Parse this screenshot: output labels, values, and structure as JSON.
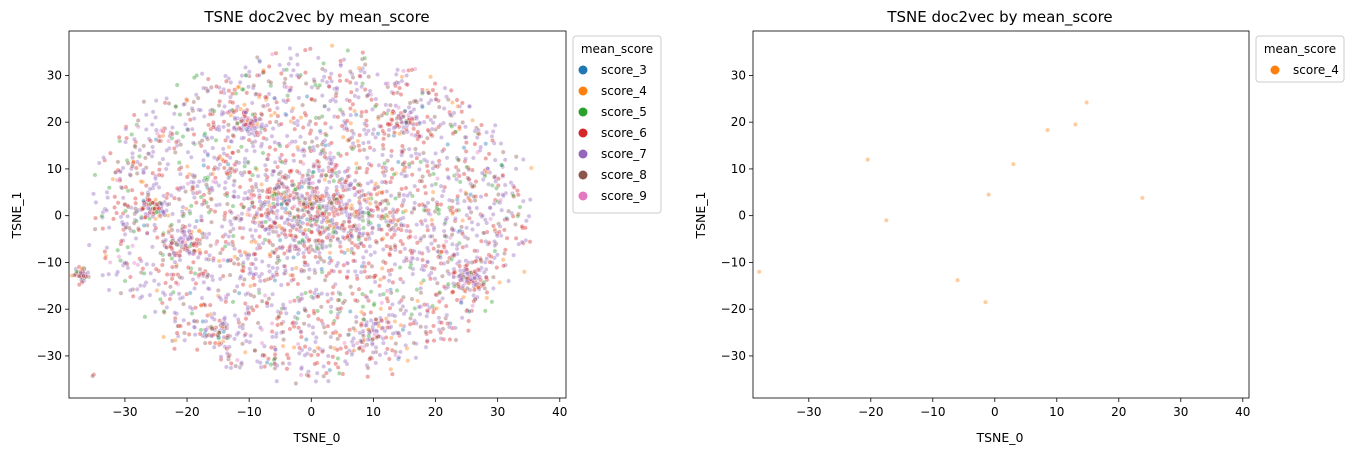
{
  "chart_data": [
    {
      "type": "scatter",
      "title": "TSNE doc2vec by mean_score",
      "xlabel": "TSNE_0",
      "ylabel": "TSNE_1",
      "xlim": [
        -39,
        41
      ],
      "ylim": [
        -39,
        39.5
      ],
      "xticks": [
        -30,
        -20,
        -10,
        0,
        10,
        20,
        30,
        40
      ],
      "yticks": [
        -30,
        -20,
        -10,
        0,
        10,
        20,
        30
      ],
      "legend": {
        "title": "mean_score",
        "placement": "outside upper right",
        "entries": [
          {
            "name": "score_3",
            "color": "#1f77b4"
          },
          {
            "name": "score_4",
            "color": "#ff7f0e"
          },
          {
            "name": "score_5",
            "color": "#2ca02c"
          },
          {
            "name": "score_6",
            "color": "#d62728"
          },
          {
            "name": "score_7",
            "color": "#9467bd"
          },
          {
            "name": "score_8",
            "color": "#8c564b"
          },
          {
            "name": "score_9",
            "color": "#e377c2"
          }
        ]
      },
      "clusters": [
        {
          "x": 0,
          "y": 0,
          "rx": 37,
          "ry": 37,
          "n": 2600
        },
        {
          "x": 1,
          "y": 1,
          "rx": 12,
          "ry": 10,
          "n": 500
        },
        {
          "x": -37,
          "y": -12.8,
          "rx": 1.3,
          "ry": 1.3,
          "n": 45
        },
        {
          "x": 25,
          "y": -13,
          "rx": 3,
          "ry": 3,
          "n": 90
        },
        {
          "x": -25,
          "y": 2,
          "rx": 2.5,
          "ry": 2.5,
          "n": 60
        },
        {
          "x": -20,
          "y": -6,
          "rx": 3,
          "ry": 3,
          "n": 70
        },
        {
          "x": -10,
          "y": 20,
          "rx": 3,
          "ry": 3,
          "n": 60
        },
        {
          "x": 15,
          "y": 20,
          "rx": 3,
          "ry": 3,
          "n": 50
        },
        {
          "x": -15,
          "y": -25,
          "rx": 2.5,
          "ry": 2.5,
          "n": 40
        },
        {
          "x": 10,
          "y": -25,
          "rx": 3,
          "ry": 3,
          "n": 40
        }
      ],
      "series_weights": {
        "score_3": 0.02,
        "score_4": 0.05,
        "score_5": 0.08,
        "score_6": 0.3,
        "score_7": 0.4,
        "score_8": 0.12,
        "score_9": 0.03
      },
      "isolated_points": [
        {
          "series": "score_6",
          "x": -35,
          "y": -34
        },
        {
          "series": "score_8",
          "x": -35.2,
          "y": -34.3
        }
      ]
    },
    {
      "type": "scatter",
      "title": "TSNE doc2vec by mean_score",
      "xlabel": "TSNE_0",
      "ylabel": "TSNE_1",
      "xlim": [
        -39,
        41
      ],
      "ylim": [
        -39,
        39.5
      ],
      "xticks": [
        -30,
        -20,
        -10,
        0,
        10,
        20,
        30,
        40
      ],
      "yticks": [
        -30,
        -20,
        -10,
        0,
        10,
        20,
        30
      ],
      "legend": {
        "title": "mean_score",
        "placement": "outside upper right",
        "entries": [
          {
            "name": "score_4",
            "color": "#ff7f0e"
          }
        ]
      },
      "series": [
        {
          "name": "score_4",
          "points": [
            [
              -38,
              -12
            ],
            [
              -20.5,
              12
            ],
            [
              -17.5,
              -1
            ],
            [
              -6,
              -13.8
            ],
            [
              -1.5,
              -18.5
            ],
            [
              -1,
              4.5
            ],
            [
              3,
              11
            ],
            [
              8.5,
              18.3
            ],
            [
              13,
              19.5
            ],
            [
              14.8,
              24.2
            ],
            [
              23.8,
              3.8
            ]
          ]
        }
      ]
    }
  ]
}
